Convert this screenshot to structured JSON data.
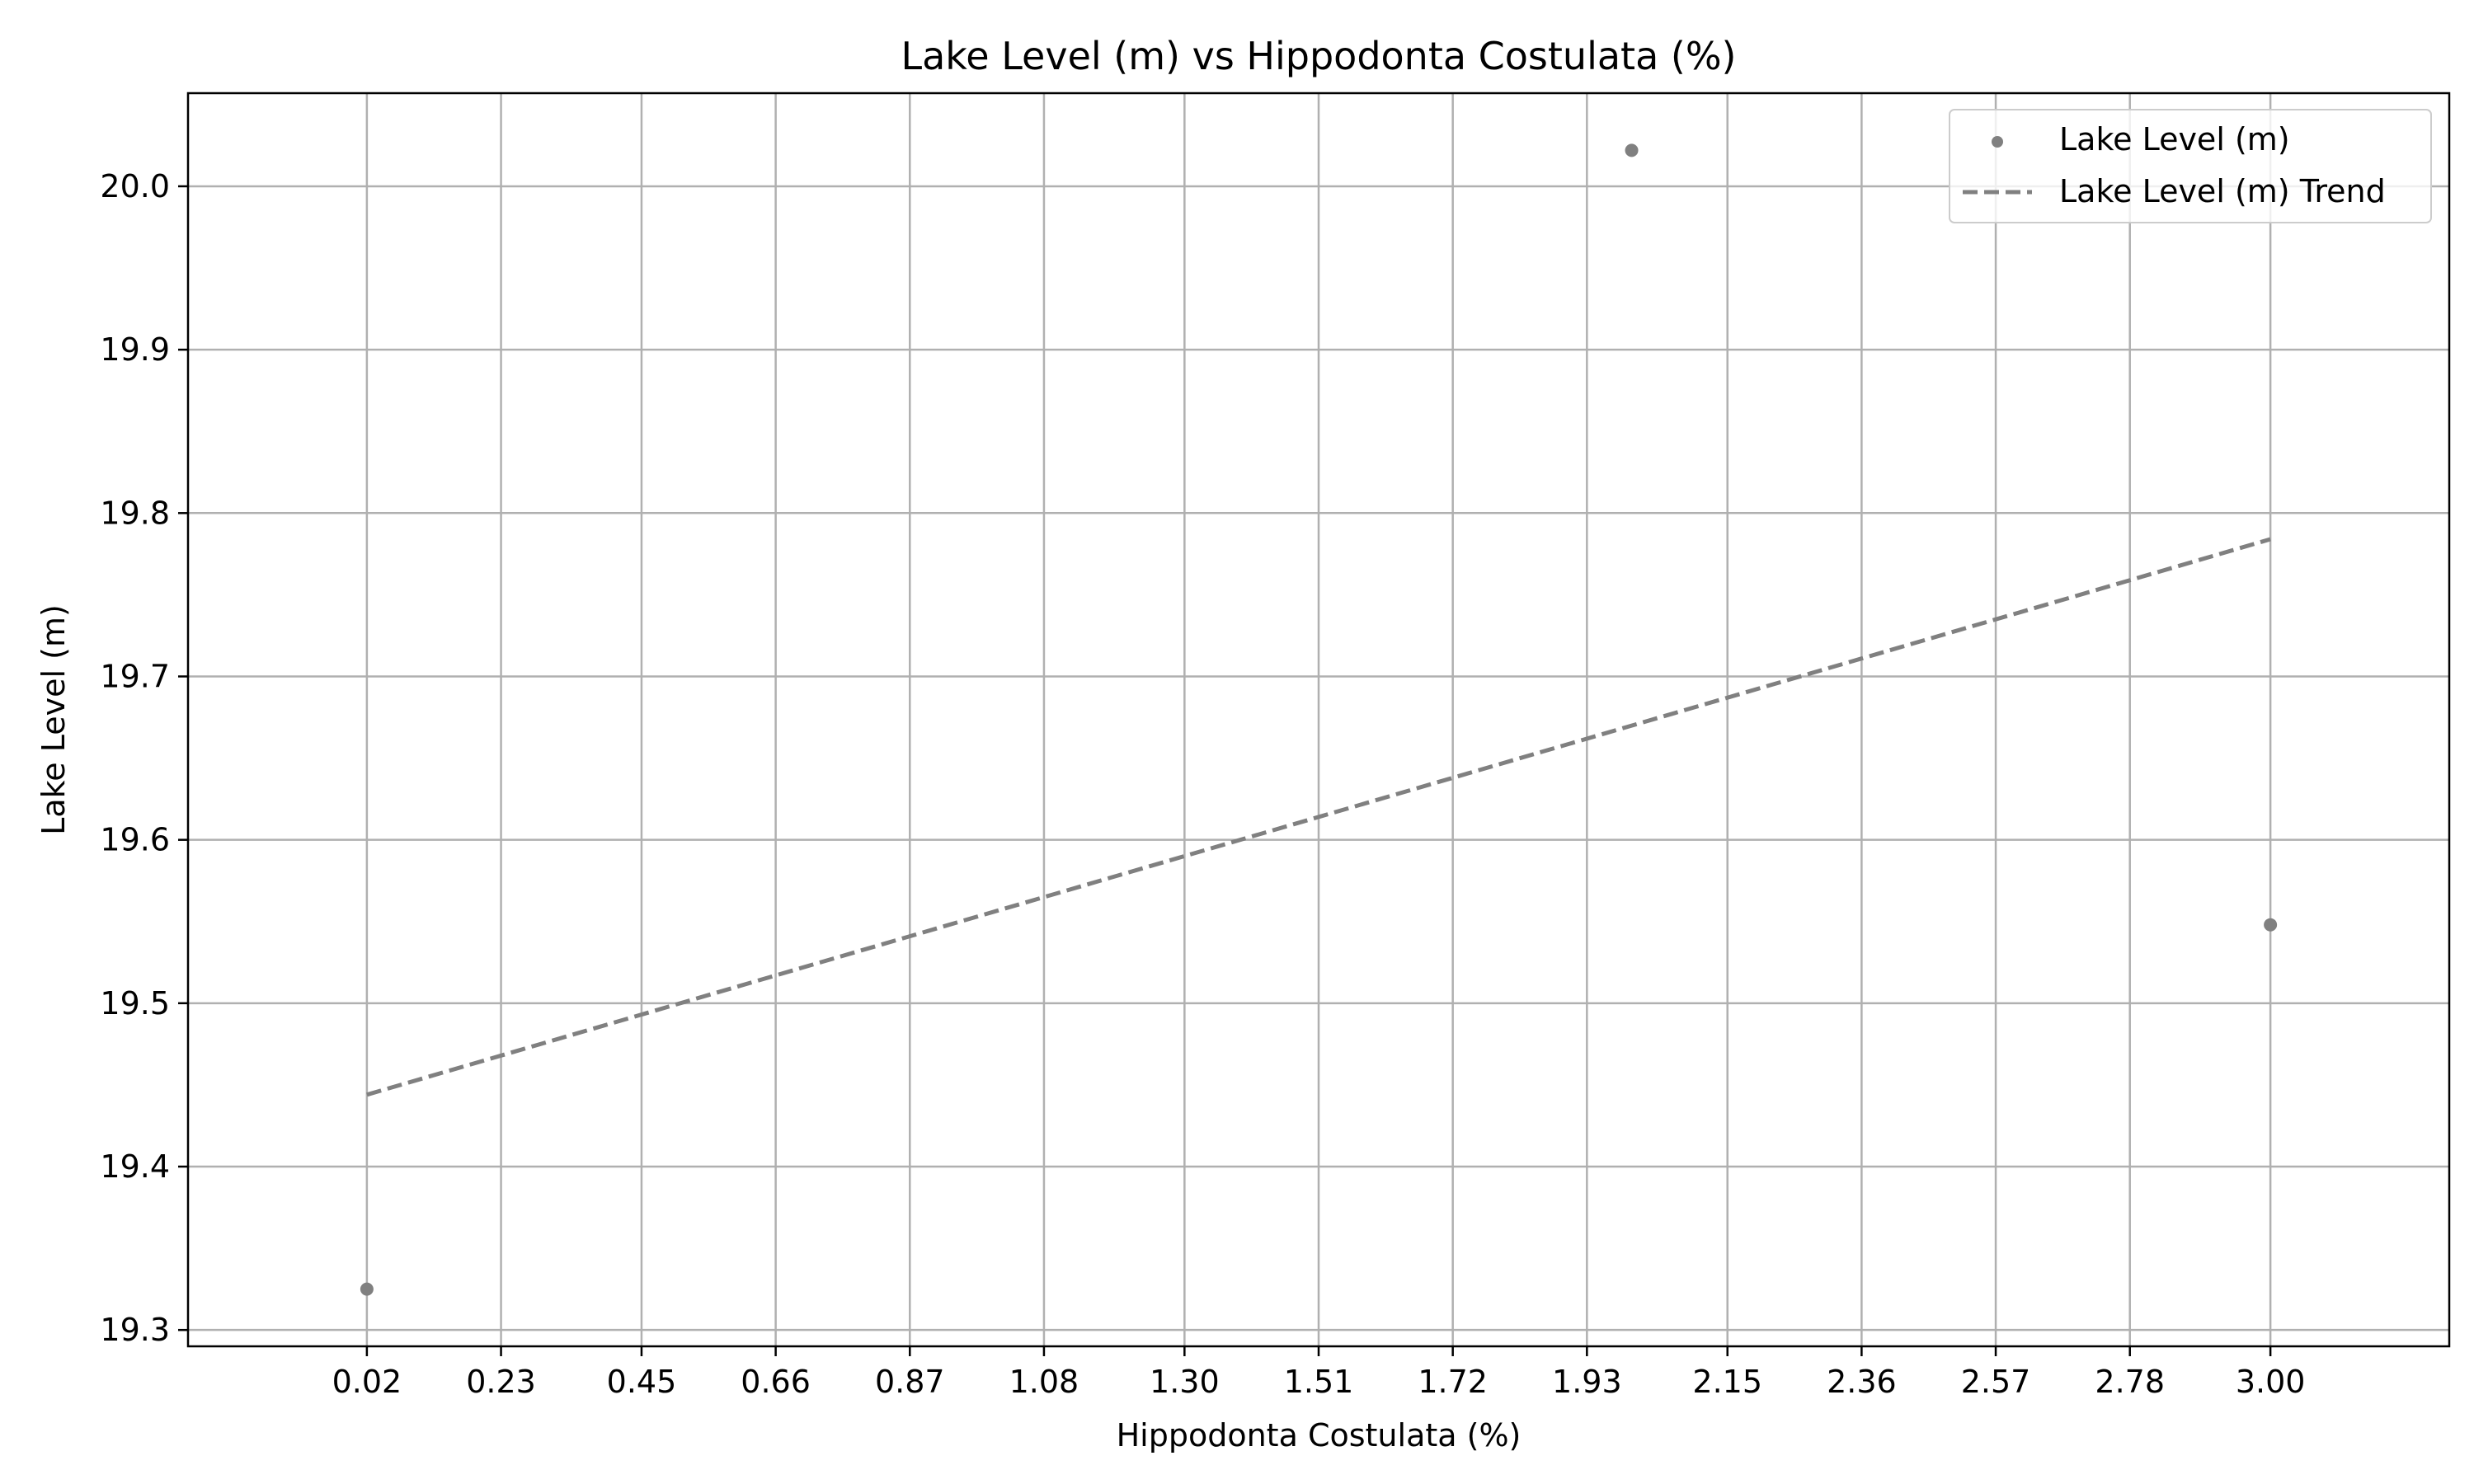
{
  "chart_data": {
    "type": "scatter",
    "title": "Lake Level (m) vs Hippodonta Costulata (%)",
    "xlabel": "Hippodonta Costulata (%)",
    "ylabel": "Lake Level (m)",
    "xlim": [
      -0.26,
      3.28
    ],
    "ylim": [
      19.29,
      20.057
    ],
    "x_ticks": [
      0.02,
      0.23,
      0.45,
      0.66,
      0.87,
      1.08,
      1.3,
      1.51,
      1.72,
      1.93,
      2.15,
      2.36,
      2.57,
      2.78,
      3.0
    ],
    "x_tick_labels": [
      "0.02",
      "0.23",
      "0.45",
      "0.66",
      "0.87",
      "1.08",
      "1.30",
      "1.51",
      "1.72",
      "1.93",
      "2.15",
      "2.36",
      "2.57",
      "2.78",
      "3.00"
    ],
    "y_ticks": [
      19.3,
      19.4,
      19.5,
      19.6,
      19.7,
      19.8,
      19.9,
      20.0
    ],
    "y_tick_labels": [
      "19.3",
      "19.4",
      "19.5",
      "19.6",
      "19.7",
      "19.8",
      "19.9",
      "20.0"
    ],
    "grid": true,
    "legend_position": "top-right",
    "series": [
      {
        "name": "Lake Level (m)",
        "kind": "scatter",
        "color": "#808080",
        "points": [
          {
            "x": 0.02,
            "y": 19.325
          },
          {
            "x": 2.0,
            "y": 20.022
          },
          {
            "x": 3.0,
            "y": 19.548
          }
        ]
      },
      {
        "name": "Lake Level (m) Trend",
        "kind": "line",
        "style": "dashed",
        "color": "#808080",
        "points": [
          {
            "x": 0.02,
            "y": 19.444
          },
          {
            "x": 3.0,
            "y": 19.784
          }
        ]
      }
    ]
  }
}
